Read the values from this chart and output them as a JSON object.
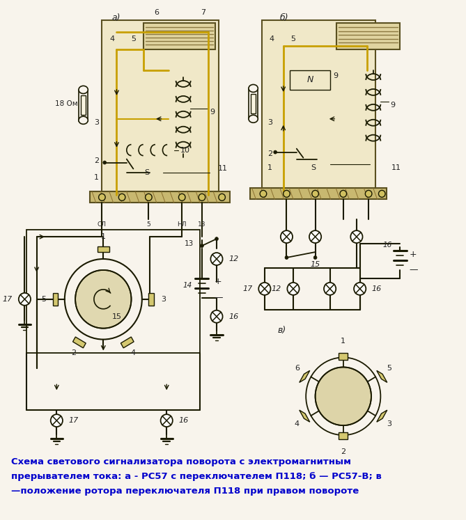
{
  "background_color": "#f8f4ec",
  "title_lines": [
    "Схема светового сигнализатора поворота с электромагнитным",
    "прерывателем тока: а - РС57 с переключателем П118; б — РС57-В; в",
    "—положение ротора переключателя П118 при правом повороте"
  ],
  "title_fontsize": 9.5,
  "title_color": "#0000cc",
  "label_a": "а)",
  "label_b": "б)",
  "label_v": "в)",
  "bg": "#f8f4ec",
  "lc": "#1a1a00",
  "yc": "#c8a000",
  "tan_color": "#c8b070"
}
